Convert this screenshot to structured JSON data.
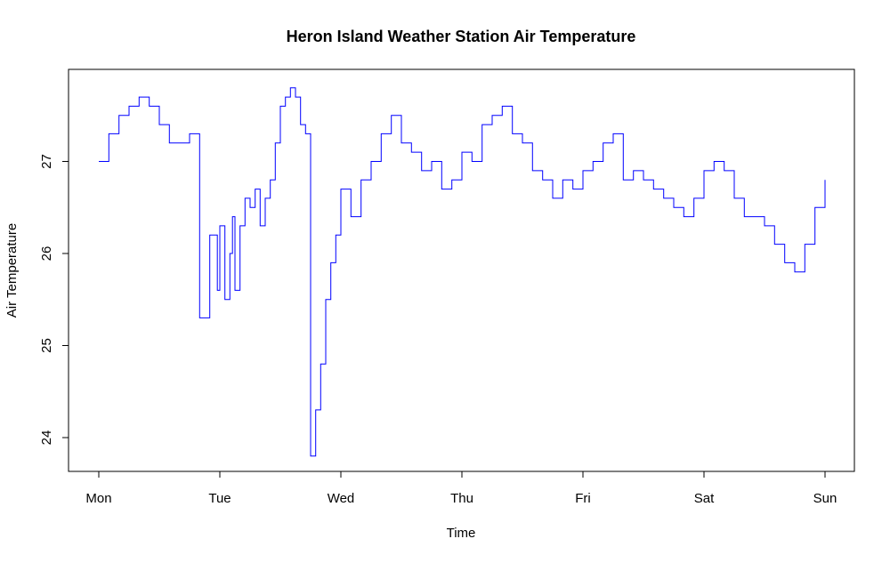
{
  "chart_data": {
    "type": "line",
    "title": "Heron Island Weather Station Air Temperature",
    "xlabel": "Time",
    "ylabel": "Air Temperature",
    "x_tick_labels": [
      "Mon",
      "Tue",
      "Wed",
      "Thu",
      "Fri",
      "Sat",
      "Sun"
    ],
    "y_ticks": [
      24,
      25,
      26,
      27
    ],
    "xlim": [
      "Mon",
      "Sun"
    ],
    "ylim": [
      23.8,
      27.8
    ],
    "line_color": "#0000ff",
    "grid": false,
    "legend": "none",
    "series": [
      {
        "x": [
          "Mon 00:00",
          "Mon 02:00",
          "Mon 04:00",
          "Mon 06:00",
          "Mon 08:00",
          "Mon 10:00",
          "Mon 12:00",
          "Mon 14:00",
          "Mon 16:00",
          "Mon 18:00",
          "Mon 20:00",
          "Mon 22:00",
          "Mon 23:30",
          "Tue 00:00",
          "Tue 01:00",
          "Tue 02:00",
          "Tue 02:30",
          "Tue 03:00",
          "Tue 04:00",
          "Tue 05:00",
          "Tue 06:00",
          "Tue 07:00",
          "Tue 08:00",
          "Tue 09:00",
          "Tue 10:00",
          "Tue 11:00",
          "Tue 12:00",
          "Tue 13:00",
          "Tue 14:00",
          "Tue 15:00",
          "Tue 16:00",
          "Tue 17:00",
          "Tue 18:00",
          "Tue 19:00",
          "Tue 20:00",
          "Tue 21:00",
          "Tue 22:00",
          "Tue 23:00",
          "Wed 00:00",
          "Wed 02:00",
          "Wed 04:00",
          "Wed 06:00",
          "Wed 08:00",
          "Wed 10:00",
          "Wed 12:00",
          "Wed 14:00",
          "Wed 16:00",
          "Wed 18:00",
          "Wed 20:00",
          "Wed 22:00",
          "Thu 00:00",
          "Thu 02:00",
          "Thu 04:00",
          "Thu 06:00",
          "Thu 08:00",
          "Thu 10:00",
          "Thu 12:00",
          "Thu 14:00",
          "Thu 16:00",
          "Thu 18:00",
          "Thu 20:00",
          "Thu 22:00",
          "Fri 00:00",
          "Fri 02:00",
          "Fri 04:00",
          "Fri 06:00",
          "Fri 08:00",
          "Fri 10:00",
          "Fri 12:00",
          "Fri 14:00",
          "Fri 16:00",
          "Fri 18:00",
          "Fri 20:00",
          "Fri 22:00",
          "Sat 00:00",
          "Sat 02:00",
          "Sat 04:00",
          "Sat 06:00",
          "Sat 08:00",
          "Sat 10:00",
          "Sat 12:00",
          "Sat 14:00",
          "Sat 16:00",
          "Sat 18:00",
          "Sat 20:00",
          "Sat 22:00",
          "Sun 00:00"
        ],
        "values": [
          27.0,
          27.3,
          27.5,
          27.6,
          27.7,
          27.6,
          27.4,
          27.2,
          27.2,
          27.3,
          25.3,
          26.2,
          25.6,
          26.3,
          25.5,
          26.0,
          26.4,
          25.6,
          26.3,
          26.6,
          26.5,
          26.7,
          26.3,
          26.6,
          26.8,
          27.2,
          27.6,
          27.7,
          27.8,
          27.7,
          27.4,
          27.3,
          23.8,
          24.3,
          24.8,
          25.5,
          25.9,
          26.2,
          26.7,
          26.4,
          26.8,
          27.0,
          27.3,
          27.5,
          27.2,
          27.1,
          26.9,
          27.0,
          26.7,
          26.8,
          27.1,
          27.0,
          27.4,
          27.5,
          27.6,
          27.3,
          27.2,
          26.9,
          26.8,
          26.6,
          26.8,
          26.7,
          26.9,
          27.0,
          27.2,
          27.3,
          26.8,
          26.9,
          26.8,
          26.7,
          26.6,
          26.5,
          26.4,
          26.6,
          26.9,
          27.0,
          26.9,
          26.6,
          26.4,
          26.4,
          26.3,
          26.1,
          25.9,
          25.8,
          26.1,
          26.5,
          26.8
        ]
      }
    ]
  }
}
